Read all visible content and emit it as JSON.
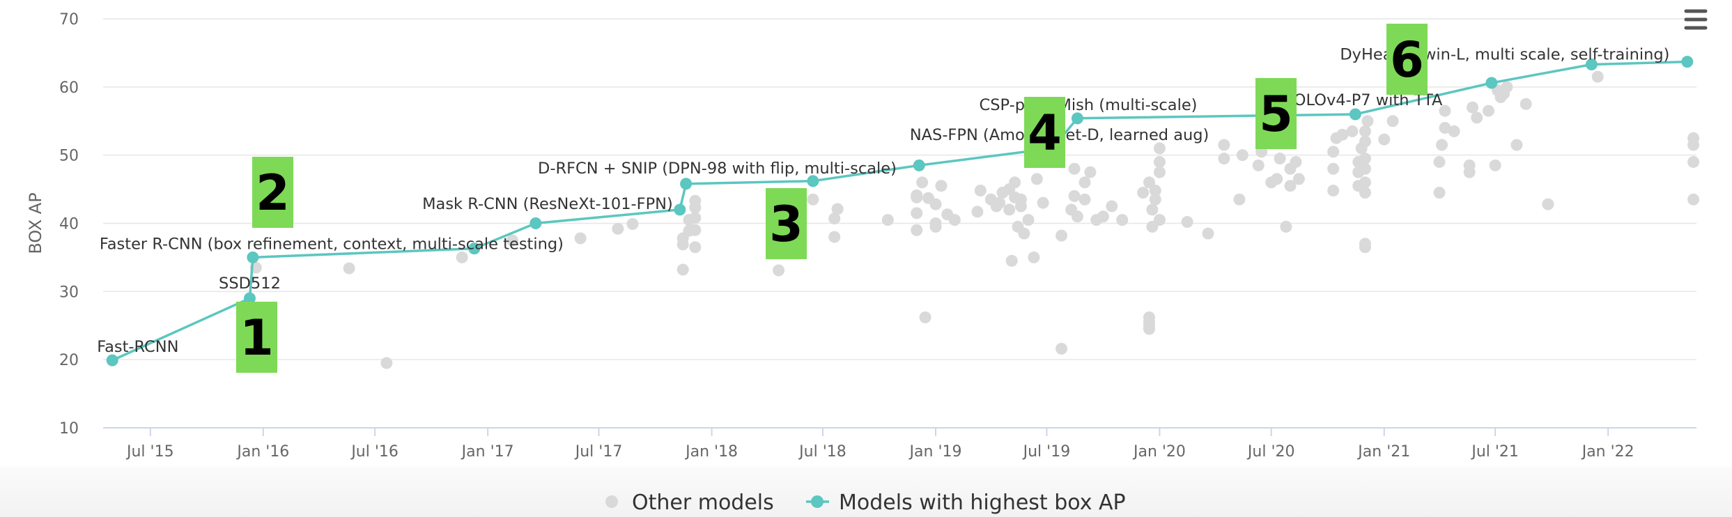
{
  "chart_data": {
    "type": "scatter",
    "title": "",
    "xlabel": "",
    "ylabel": "BOX AP",
    "ylim": [
      10,
      70
    ],
    "xlim": [
      "2015-04-15",
      "2022-05-25"
    ],
    "yticks": [
      10,
      20,
      30,
      40,
      50,
      60,
      70
    ],
    "xticks": [
      {
        "label": "Jul '15",
        "date": "2015-07-01"
      },
      {
        "label": "Jan '16",
        "date": "2016-01-01"
      },
      {
        "label": "Jul '16",
        "date": "2016-07-01"
      },
      {
        "label": "Jan '17",
        "date": "2017-01-01"
      },
      {
        "label": "Jul '17",
        "date": "2017-07-01"
      },
      {
        "label": "Jan '18",
        "date": "2018-01-01"
      },
      {
        "label": "Jul '18",
        "date": "2018-07-01"
      },
      {
        "label": "Jan '19",
        "date": "2019-01-01"
      },
      {
        "label": "Jul '19",
        "date": "2019-07-01"
      },
      {
        "label": "Jan '20",
        "date": "2020-01-01"
      },
      {
        "label": "Jul '20",
        "date": "2020-07-01"
      },
      {
        "label": "Jan '21",
        "date": "2021-01-01"
      },
      {
        "label": "Jul '21",
        "date": "2021-07-01"
      },
      {
        "label": "Jan '22",
        "date": "2022-01-01"
      }
    ],
    "grid": true,
    "legend_position": "bottom-center",
    "series": [
      {
        "name": "Other models",
        "color": "#d9d9d9",
        "points": [
          [
            "2015-12-20",
            33.5
          ],
          [
            "2016-05-20",
            33.4
          ],
          [
            "2016-07-20",
            19.5
          ],
          [
            "2016-11-20",
            35.0
          ],
          [
            "2017-02-10",
            37.5
          ],
          [
            "2017-06-01",
            37.8
          ],
          [
            "2017-08-01",
            39.2
          ],
          [
            "2017-08-25",
            39.9
          ],
          [
            "2017-11-15",
            33.2
          ],
          [
            "2017-11-15",
            36.9
          ],
          [
            "2017-11-15",
            37.8
          ],
          [
            "2017-11-25",
            38.9
          ],
          [
            "2017-11-25",
            40.5
          ],
          [
            "2017-12-05",
            36.5
          ],
          [
            "2017-12-05",
            39.0
          ],
          [
            "2017-12-05",
            40.8
          ],
          [
            "2017-12-05",
            42.3
          ],
          [
            "2017-12-05",
            43.3
          ],
          [
            "2018-04-20",
            33.1
          ],
          [
            "2018-06-15",
            43.5
          ],
          [
            "2018-07-20",
            38.0
          ],
          [
            "2018-07-20",
            40.7
          ],
          [
            "2018-07-25",
            42.1
          ],
          [
            "2018-10-15",
            40.5
          ],
          [
            "2018-12-01",
            39.0
          ],
          [
            "2018-12-01",
            41.5
          ],
          [
            "2018-12-01",
            43.8
          ],
          [
            "2018-12-01",
            44.1
          ],
          [
            "2018-12-10",
            46.0
          ],
          [
            "2018-12-15",
            26.2
          ],
          [
            "2018-12-20",
            43.7
          ],
          [
            "2019-01-01",
            39.5
          ],
          [
            "2019-01-01",
            40.0
          ],
          [
            "2019-01-01",
            42.8
          ],
          [
            "2019-01-10",
            45.5
          ],
          [
            "2019-01-20",
            41.3
          ],
          [
            "2019-02-01",
            40.5
          ],
          [
            "2019-03-10",
            41.7
          ],
          [
            "2019-03-15",
            44.8
          ],
          [
            "2019-04-01",
            43.5
          ],
          [
            "2019-04-10",
            42.5
          ],
          [
            "2019-04-15",
            43.0
          ],
          [
            "2019-04-20",
            44.5
          ],
          [
            "2019-05-01",
            42.0
          ],
          [
            "2019-05-01",
            45.0
          ],
          [
            "2019-05-05",
            34.5
          ],
          [
            "2019-05-10",
            43.8
          ],
          [
            "2019-05-10",
            46.0
          ],
          [
            "2019-05-15",
            39.5
          ],
          [
            "2019-05-20",
            42.5
          ],
          [
            "2019-05-20",
            43.5
          ],
          [
            "2019-05-25",
            38.5
          ],
          [
            "2019-06-01",
            40.5
          ],
          [
            "2019-06-10",
            35.0
          ],
          [
            "2019-06-15",
            46.5
          ],
          [
            "2019-06-25",
            43.0
          ],
          [
            "2019-07-25",
            21.6
          ],
          [
            "2019-07-25",
            38.2
          ],
          [
            "2019-08-10",
            42.0
          ],
          [
            "2019-08-15",
            44.0
          ],
          [
            "2019-08-15",
            48.0
          ],
          [
            "2019-08-20",
            41.0
          ],
          [
            "2019-09-01",
            43.5
          ],
          [
            "2019-09-01",
            46.0
          ],
          [
            "2019-09-10",
            47.5
          ],
          [
            "2019-09-20",
            40.5
          ],
          [
            "2019-10-01",
            41.0
          ],
          [
            "2019-10-15",
            42.5
          ],
          [
            "2019-11-01",
            40.5
          ],
          [
            "2019-12-05",
            44.5
          ],
          [
            "2019-12-15",
            46.0
          ],
          [
            "2019-12-15",
            24.5
          ],
          [
            "2019-12-15",
            25.0
          ],
          [
            "2019-12-15",
            25.5
          ],
          [
            "2019-12-15",
            26.2
          ],
          [
            "2019-12-20",
            39.5
          ],
          [
            "2019-12-20",
            42.0
          ],
          [
            "2019-12-25",
            43.5
          ],
          [
            "2019-12-25",
            44.8
          ],
          [
            "2020-01-01",
            40.5
          ],
          [
            "2020-01-01",
            47.5
          ],
          [
            "2020-01-01",
            49.0
          ],
          [
            "2020-01-01",
            51.0
          ],
          [
            "2020-02-15",
            40.2
          ],
          [
            "2020-03-20",
            38.5
          ],
          [
            "2020-04-15",
            49.5
          ],
          [
            "2020-04-15",
            51.5
          ],
          [
            "2020-05-10",
            43.5
          ],
          [
            "2020-05-15",
            50.0
          ],
          [
            "2020-06-10",
            48.5
          ],
          [
            "2020-06-15",
            50.5
          ],
          [
            "2020-06-20",
            53.0
          ],
          [
            "2020-07-01",
            46.0
          ],
          [
            "2020-07-10",
            46.5
          ],
          [
            "2020-07-15",
            49.5
          ],
          [
            "2020-07-20",
            52.8
          ],
          [
            "2020-07-25",
            39.5
          ],
          [
            "2020-08-01",
            48.0
          ],
          [
            "2020-08-01",
            45.5
          ],
          [
            "2020-08-10",
            49.0
          ],
          [
            "2020-08-15",
            46.5
          ],
          [
            "2020-10-10",
            44.8
          ],
          [
            "2020-10-10",
            48.0
          ],
          [
            "2020-10-10",
            50.5
          ],
          [
            "2020-10-15",
            52.5
          ],
          [
            "2020-10-25",
            53.0
          ],
          [
            "2020-11-10",
            53.5
          ],
          [
            "2020-11-20",
            45.5
          ],
          [
            "2020-11-20",
            47.5
          ],
          [
            "2020-11-20",
            49.0
          ],
          [
            "2020-11-25",
            51.0
          ],
          [
            "2020-12-01",
            36.5
          ],
          [
            "2020-12-01",
            37.0
          ],
          [
            "2020-12-01",
            44.5
          ],
          [
            "2020-12-01",
            46.0
          ],
          [
            "2020-12-01",
            48.0
          ],
          [
            "2020-12-01",
            49.5
          ],
          [
            "2020-12-01",
            52.0
          ],
          [
            "2020-12-01",
            53.5
          ],
          [
            "2020-12-05",
            55.0
          ],
          [
            "2021-01-01",
            52.3
          ],
          [
            "2021-01-15",
            55.0
          ],
          [
            "2021-04-01",
            44.5
          ],
          [
            "2021-04-01",
            49.0
          ],
          [
            "2021-04-05",
            51.5
          ],
          [
            "2021-04-10",
            54.0
          ],
          [
            "2021-04-10",
            56.5
          ],
          [
            "2021-04-25",
            53.5
          ],
          [
            "2021-05-20",
            47.5
          ],
          [
            "2021-05-20",
            48.5
          ],
          [
            "2021-05-25",
            57.0
          ],
          [
            "2021-06-01",
            55.5
          ],
          [
            "2021-06-20",
            56.5
          ],
          [
            "2021-07-01",
            48.5
          ],
          [
            "2021-07-05",
            59.5
          ],
          [
            "2021-07-10",
            58.5
          ],
          [
            "2021-07-15",
            59.0
          ],
          [
            "2021-07-20",
            60.0
          ],
          [
            "2021-08-05",
            51.5
          ],
          [
            "2021-08-20",
            57.5
          ],
          [
            "2021-09-25",
            42.8
          ],
          [
            "2021-12-15",
            61.5
          ],
          [
            "2022-05-20",
            43.5
          ],
          [
            "2022-05-20",
            49.0
          ],
          [
            "2022-05-20",
            51.5
          ],
          [
            "2022-05-20",
            52.5
          ]
        ]
      },
      {
        "name": "Models with highest box AP",
        "color": "#5cc6c0",
        "points": [
          [
            "2015-04-30",
            19.9
          ],
          [
            "2015-12-10",
            29.0
          ],
          [
            "2015-12-15",
            35.0
          ],
          [
            "2016-12-10",
            36.3
          ],
          [
            "2017-03-20",
            40.0
          ],
          [
            "2017-11-10",
            42.0
          ],
          [
            "2017-11-20",
            45.8
          ],
          [
            "2018-06-15",
            46.2
          ],
          [
            "2018-12-05",
            48.5
          ],
          [
            "2019-07-10",
            51.0
          ],
          [
            "2019-08-20",
            55.4
          ],
          [
            "2020-11-15",
            56.0
          ],
          [
            "2021-06-25",
            60.6
          ],
          [
            "2021-12-05",
            63.3
          ],
          [
            "2022-05-10",
            63.7
          ]
        ]
      }
    ],
    "annotations": [
      {
        "text": "Fast-RCNN",
        "date": "2015-04-30",
        "value": 19.9
      },
      {
        "text": "SSD512",
        "date": "2015-12-10",
        "value": 29.0
      },
      {
        "text": "Faster R-CNN (box refinement, context, multi-scale testing)",
        "date": "2015-12-15",
        "value": 35.0
      },
      {
        "text": "Mask R-CNN (ResNeXt-101-FPN)",
        "date": "2017-11-10",
        "value": 42.0
      },
      {
        "text": "D-RFCN + SNIP (DPN-98 with flip, multi-scale)",
        "date": "2018-06-15",
        "value": 46.2
      },
      {
        "text": "NAS-FPN (AmoebaNet-D, learned aug)",
        "date": "2019-07-10",
        "value": 51.0
      },
      {
        "text": "CSP-p6 + Mish (multi-scale)",
        "date": "2019-08-20",
        "value": 55.4
      },
      {
        "text": "YOLOv4-P7 with TTA",
        "date": "2020-11-15",
        "value": 56.0
      },
      {
        "text": "DyHead (Swin-L, multi scale, self-training)",
        "date": "2021-12-05",
        "value": 63.3
      }
    ],
    "step_markers": [
      "1",
      "2",
      "3",
      "4",
      "5",
      "6"
    ],
    "legend": [
      "Other models",
      "Models with highest box AP"
    ]
  }
}
